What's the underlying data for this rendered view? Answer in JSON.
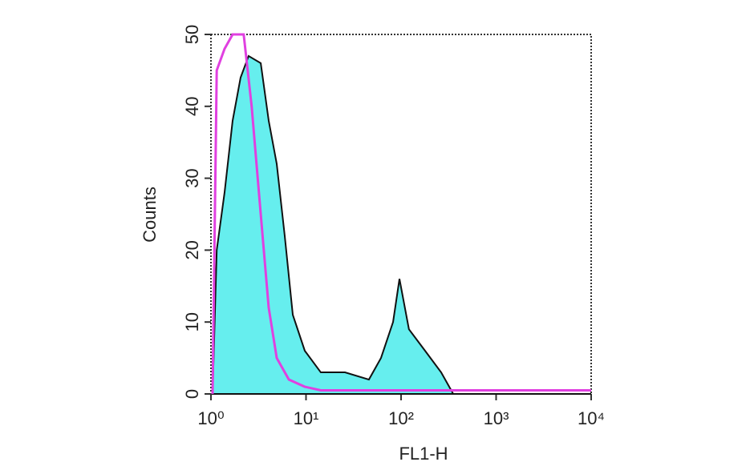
{
  "chart_data": {
    "type": "histogram-overlay",
    "xlabel": "FL1-H",
    "ylabel": "Counts",
    "xscale": "log",
    "xlim": [
      1,
      10000
    ],
    "xticks": [
      {
        "value": 1,
        "label": "10⁰"
      },
      {
        "value": 10,
        "label": "10¹"
      },
      {
        "value": 100,
        "label": "10²"
      },
      {
        "value": 1000,
        "label": "10³"
      },
      {
        "value": 10000,
        "label": "10⁴"
      }
    ],
    "ylim": [
      0,
      50
    ],
    "yticks": [
      0,
      10,
      20,
      30,
      40,
      50
    ],
    "series": [
      {
        "color": "#66eeee",
        "filled": true,
        "x": [
          1.04,
          1.15,
          1.39,
          1.69,
          2.05,
          2.49,
          3.34,
          4.05,
          4.92,
          5.97,
          7.26,
          9.71,
          14.3,
          25.7,
          45.9,
          61.5,
          82.4,
          96.2,
          121,
          179,
          264,
          354,
          10000
        ],
        "values": [
          0,
          20,
          28,
          38,
          44,
          47,
          46,
          38,
          32,
          22,
          11,
          6,
          3,
          3,
          2,
          5,
          10,
          16,
          9,
          6,
          3,
          0,
          0
        ]
      },
      {
        "color": "#e040e0",
        "filled": false,
        "x": [
          1.04,
          1.15,
          1.39,
          1.69,
          2.21,
          2.68,
          3.34,
          4.05,
          4.92,
          6.6,
          9.71,
          14.3,
          10000
        ],
        "values": [
          0,
          45,
          48,
          50,
          50,
          40,
          25,
          12,
          5,
          2,
          1,
          0.5,
          0.5
        ]
      }
    ]
  }
}
